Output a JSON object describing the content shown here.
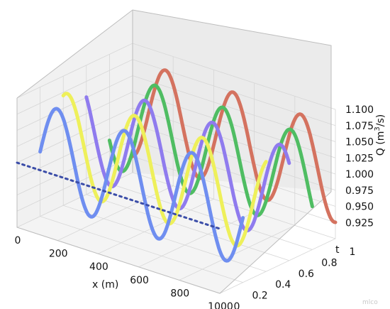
{
  "chart_data": {
    "type": "line",
    "projection": "3d",
    "xlabel": "x (m)",
    "ylabel": "t",
    "zlabel": "Q (m³/s)",
    "zlabel_base": "Q (m",
    "zlabel_sup": "3",
    "zlabel_end": "/s)",
    "xlim": [
      0,
      1000
    ],
    "ylim": [
      0,
      1
    ],
    "zlim": [
      0.9,
      1.1
    ],
    "xticks": [
      "0",
      "200",
      "400",
      "600",
      "800",
      "1000"
    ],
    "yticks": [
      "0",
      "0.2",
      "0.4",
      "0.6",
      "0.8",
      "1"
    ],
    "zticks": [
      "0.925",
      "0.950",
      "0.975",
      "1.000",
      "1.025",
      "1.050",
      "1.075",
      "1.100"
    ],
    "grid": true,
    "series": [
      {
        "t": 0.0,
        "color": "#3b4da8",
        "style": "dotted",
        "amplitude": 0.0,
        "cycles": 0.0,
        "x": [
          0,
          1000
        ],
        "Q": [
          1.0,
          1.0
        ]
      },
      {
        "t": 0.2,
        "color": "#6f8ef0",
        "style": "solid",
        "amplitude": 0.075,
        "cycles": 3.0,
        "phase": 0.0
      },
      {
        "t": 0.4,
        "color": "#eef05a",
        "style": "solid",
        "amplitude": 0.075,
        "cycles": 3.0,
        "phase": 1.2
      },
      {
        "t": 0.6,
        "color": "#8f7bee",
        "style": "solid",
        "amplitude": 0.075,
        "cycles": 3.0,
        "phase": 2.4
      },
      {
        "t": 0.8,
        "color": "#4fbd62",
        "style": "solid",
        "amplitude": 0.075,
        "cycles": 3.0,
        "phase": 3.6
      },
      {
        "t": 1.0,
        "color": "#d4725f",
        "style": "solid",
        "amplitude": 0.075,
        "cycles": 3.0,
        "phase": 4.8
      }
    ]
  },
  "watermark": "mlco"
}
